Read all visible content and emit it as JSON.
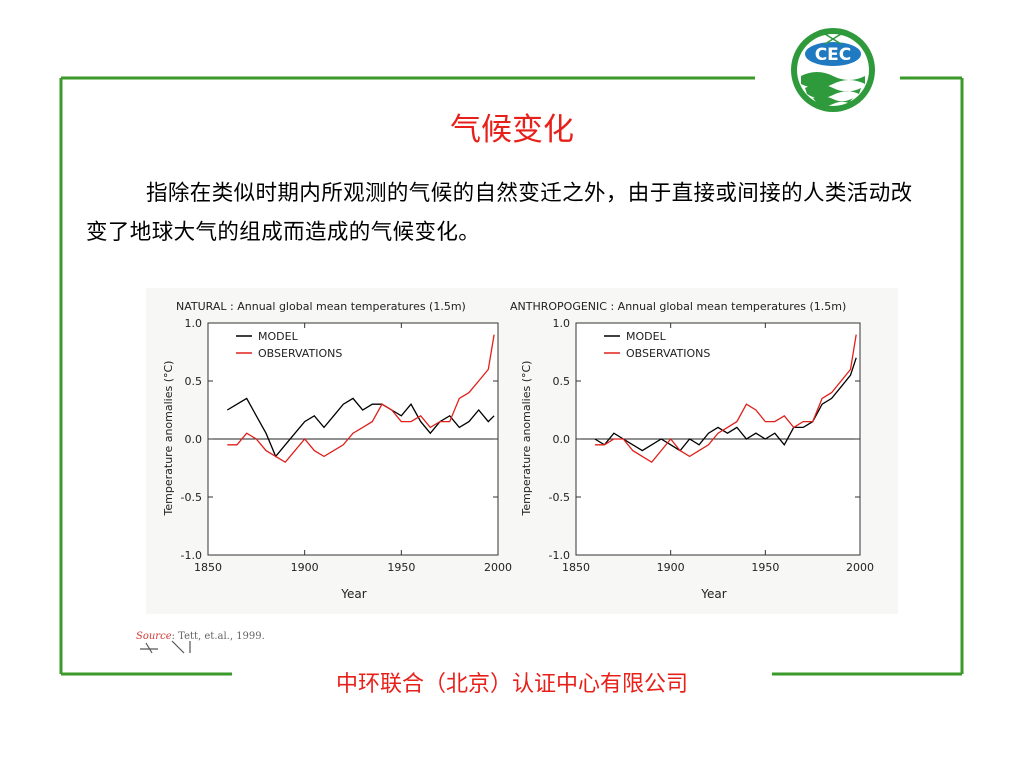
{
  "title": "气候变化",
  "paragraph": "指除在类似时期内所观测的气候的自然变迁之外，由于直接或间接的人类活动改变了地球大气的组成而造成的气候变化。",
  "source": {
    "word": "Source",
    "rest": ": Tett, et.al., 1999."
  },
  "footer": "中环联合（北京）认证中心有限公司",
  "logo": {
    "text": "CEC"
  },
  "colors": {
    "frame": "#3a9a2a",
    "accent": "#e8201a",
    "model": "#000000",
    "observations": "#e0201a"
  },
  "chart_data": [
    {
      "type": "line",
      "title": "NATURAL : Annual global mean temperatures (1.5m)",
      "xlabel": "Year",
      "ylabel": "Temperature anomalies (°C)",
      "xlim": [
        1850,
        2000
      ],
      "ylim": [
        -1.0,
        1.0
      ],
      "xticks": [
        1850,
        1900,
        1950,
        2000
      ],
      "yticks": [
        -1.0,
        -0.5,
        0.0,
        0.5,
        1.0
      ],
      "xtick_labels": [
        "1850",
        "1900",
        "1950",
        "2000"
      ],
      "ytick_labels": [
        "-1.0",
        "-0.5",
        "0.0",
        "0.5",
        "1.0"
      ],
      "legend": "top-left",
      "series": [
        {
          "name": "MODEL",
          "color": "#000000",
          "x": [
            1860,
            1865,
            1870,
            1875,
            1880,
            1885,
            1890,
            1895,
            1900,
            1905,
            1910,
            1915,
            1920,
            1925,
            1930,
            1935,
            1940,
            1945,
            1950,
            1955,
            1960,
            1965,
            1970,
            1975,
            1980,
            1985,
            1990,
            1995,
            1998
          ],
          "y": [
            0.25,
            0.3,
            0.35,
            0.2,
            0.05,
            -0.15,
            -0.05,
            0.05,
            0.15,
            0.2,
            0.1,
            0.2,
            0.3,
            0.35,
            0.25,
            0.3,
            0.3,
            0.25,
            0.2,
            0.3,
            0.15,
            0.05,
            0.15,
            0.2,
            0.1,
            0.15,
            0.25,
            0.15,
            0.2
          ]
        },
        {
          "name": "OBSERVATIONS",
          "color": "#e0201a",
          "x": [
            1860,
            1865,
            1870,
            1875,
            1880,
            1885,
            1890,
            1895,
            1900,
            1905,
            1910,
            1915,
            1920,
            1925,
            1930,
            1935,
            1940,
            1945,
            1950,
            1955,
            1960,
            1965,
            1970,
            1975,
            1980,
            1985,
            1990,
            1995,
            1998
          ],
          "y": [
            -0.05,
            -0.05,
            0.05,
            0.0,
            -0.1,
            -0.15,
            -0.2,
            -0.1,
            0.0,
            -0.1,
            -0.15,
            -0.1,
            -0.05,
            0.05,
            0.1,
            0.15,
            0.3,
            0.25,
            0.15,
            0.15,
            0.2,
            0.1,
            0.15,
            0.15,
            0.35,
            0.4,
            0.5,
            0.6,
            0.9
          ]
        }
      ]
    },
    {
      "type": "line",
      "title": "ANTHROPOGENIC : Annual global mean temperatures (1.5m)",
      "xlabel": "Year",
      "ylabel": "Temperature anomalies (°C)",
      "xlim": [
        1850,
        2000
      ],
      "ylim": [
        -1.0,
        1.0
      ],
      "xticks": [
        1850,
        1900,
        1950,
        2000
      ],
      "yticks": [
        -1.0,
        -0.5,
        0.0,
        0.5,
        1.0
      ],
      "xtick_labels": [
        "1850",
        "1900",
        "1950",
        "2000"
      ],
      "ytick_labels": [
        "-1.0",
        "-0.5",
        "0.0",
        "0.5",
        "1.0"
      ],
      "legend": "top-left",
      "series": [
        {
          "name": "MODEL",
          "color": "#000000",
          "x": [
            1860,
            1865,
            1870,
            1875,
            1880,
            1885,
            1890,
            1895,
            1900,
            1905,
            1910,
            1915,
            1920,
            1925,
            1930,
            1935,
            1940,
            1945,
            1950,
            1955,
            1960,
            1965,
            1970,
            1975,
            1980,
            1985,
            1990,
            1995,
            1998
          ],
          "y": [
            0.0,
            -0.05,
            0.05,
            0.0,
            -0.05,
            -0.1,
            -0.05,
            0.0,
            -0.05,
            -0.1,
            0.0,
            -0.05,
            0.05,
            0.1,
            0.05,
            0.1,
            0.0,
            0.05,
            0.0,
            0.05,
            -0.05,
            0.1,
            0.1,
            0.15,
            0.3,
            0.35,
            0.45,
            0.55,
            0.7
          ]
        },
        {
          "name": "OBSERVATIONS",
          "color": "#e0201a",
          "x": [
            1860,
            1865,
            1870,
            1875,
            1880,
            1885,
            1890,
            1895,
            1900,
            1905,
            1910,
            1915,
            1920,
            1925,
            1930,
            1935,
            1940,
            1945,
            1950,
            1955,
            1960,
            1965,
            1970,
            1975,
            1980,
            1985,
            1990,
            1995,
            1998
          ],
          "y": [
            -0.05,
            -0.05,
            0.0,
            0.0,
            -0.1,
            -0.15,
            -0.2,
            -0.1,
            0.0,
            -0.1,
            -0.15,
            -0.1,
            -0.05,
            0.05,
            0.1,
            0.15,
            0.3,
            0.25,
            0.15,
            0.15,
            0.2,
            0.1,
            0.15,
            0.15,
            0.35,
            0.4,
            0.5,
            0.6,
            0.9
          ]
        }
      ]
    }
  ]
}
